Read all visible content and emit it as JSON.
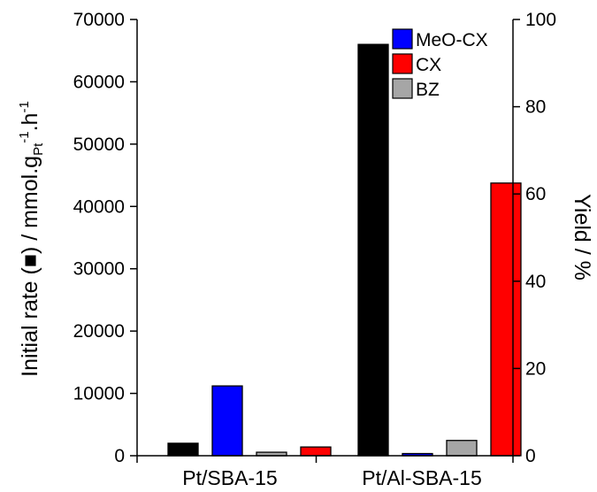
{
  "chart_data": {
    "type": "bar",
    "categories": [
      "Pt/SBA-15",
      "Pt/Al-SBA-15"
    ],
    "y_left": {
      "label": "Initial rate (■) / mmol.g",
      "label_sub": "Pt",
      "label_sup1": "-1",
      "label_mid": ".h",
      "label_sup2": "-1",
      "ylim": [
        0,
        70000
      ],
      "ticks": [
        "0",
        "10000",
        "20000",
        "30000",
        "40000",
        "50000",
        "60000",
        "70000"
      ]
    },
    "y_right": {
      "label": "Yield / %",
      "ylim": [
        0,
        100
      ],
      "ticks": [
        "0",
        "20",
        "40",
        "60",
        "80",
        "100"
      ]
    },
    "initial_rate": {
      "color": "#000000",
      "axis": "left",
      "values": [
        2000,
        66000
      ]
    },
    "series": [
      {
        "name": "MeO-CX",
        "color": "#0000ff",
        "axis": "right",
        "values": [
          16,
          0.5
        ]
      },
      {
        "name": "BZ",
        "color": "#a6a6a6",
        "axis": "right",
        "values": [
          0.8,
          3.5
        ]
      },
      {
        "name": "CX",
        "color": "#ff0000",
        "axis": "right",
        "values": [
          2,
          62.5
        ]
      }
    ],
    "legend": {
      "placement": "top-right",
      "items": [
        {
          "name": "MeO-CX",
          "color": "#0000ff"
        },
        {
          "name": "CX",
          "color": "#ff0000"
        },
        {
          "name": "BZ",
          "color": "#a6a6a6"
        }
      ]
    },
    "grid": false
  }
}
